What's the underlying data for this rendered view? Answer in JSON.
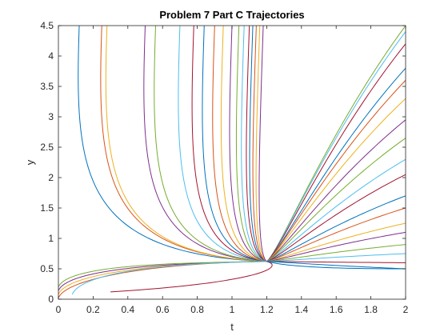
{
  "chart_data": {
    "type": "line",
    "title": "Problem 7 Part C Trajectories",
    "xlabel": "t",
    "ylabel": "y",
    "xlim": [
      0,
      2
    ],
    "ylim": [
      0,
      4.5
    ],
    "xticks": [
      "0",
      "0.2",
      "0.4",
      "0.6",
      "0.8",
      "1",
      "1.2",
      "1.4",
      "1.6",
      "1.8",
      "2"
    ],
    "yticks": [
      "0",
      "0.5",
      "1",
      "1.5",
      "2",
      "2.5",
      "3",
      "3.5",
      "4",
      "4.5"
    ],
    "grid": false,
    "legend": false,
    "box": true,
    "colors": [
      "#0072BD",
      "#D95319",
      "#EDB120",
      "#7E2F8E",
      "#77AC30",
      "#4DBEEE",
      "#A2142F"
    ],
    "attractor": {
      "t": 1.2,
      "y": 0.62
    },
    "upper_start_t": [
      0.12,
      0.25,
      0.28,
      0.5,
      0.56,
      0.7,
      0.78,
      0.84,
      0.9,
      0.95,
      1.0,
      1.04,
      1.07,
      1.1,
      1.12,
      1.14,
      1.16,
      1.18
    ],
    "right_end_y": [
      4.5,
      4.4,
      4.2,
      3.8,
      3.6,
      3.3,
      2.95,
      2.65,
      2.3,
      2.05,
      1.7,
      1.5,
      1.25,
      1.1,
      0.9,
      0.75,
      0.6,
      0.5
    ],
    "lower_start_y": [
      0.02,
      0.08,
      0.14,
      0.2,
      0.08
    ],
    "lower_start_t": [
      0.0,
      0.0,
      0.0,
      0.0,
      0.08
    ]
  }
}
